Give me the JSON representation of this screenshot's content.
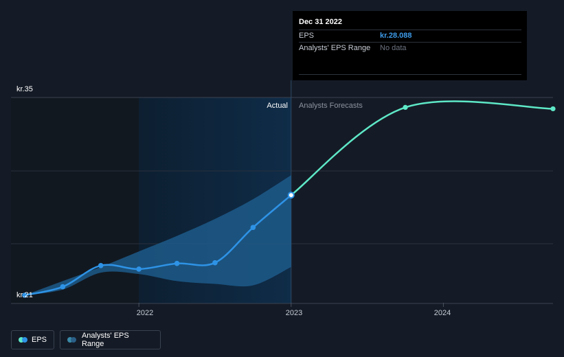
{
  "tooltip": {
    "date": "Dec 31 2022",
    "rows": [
      {
        "label": "EPS",
        "value": "kr.28.088"
      },
      {
        "label": "Analysts' EPS Range",
        "value": "No data"
      }
    ]
  },
  "labels": {
    "actual": "Actual",
    "forecast": "Analysts Forecasts"
  },
  "legend": {
    "eps": "EPS",
    "range": "Analysts' EPS Range"
  },
  "colors": {
    "background": "#151b26",
    "eps_line": "#2e93e6",
    "forecast_line": "#5ee8c8",
    "range_fill": "#1d5a8a",
    "highlight": "#0f2c48"
  },
  "chart_data": {
    "type": "line",
    "y_tick_labels": [
      "kr.35",
      "kr.21"
    ],
    "x_tick_labels": [
      "2022",
      "2023",
      "2024"
    ],
    "x_ticks": [
      2022.0,
      2023.0,
      2024.0
    ],
    "ylim": [
      21,
      35
    ],
    "xlim": [
      2021.16,
      2024.72
    ],
    "split_x": 2023.0,
    "highlight_start_x": 2022.0,
    "grid": true,
    "series": [
      {
        "name": "EPS",
        "x": [
          2021.25,
          2021.5,
          2021.75,
          2022.0,
          2022.25,
          2022.5,
          2022.75,
          2023.0
        ],
        "y": [
          21.0,
          21.6,
          23.1,
          22.85,
          23.25,
          23.3,
          25.8,
          28.088
        ]
      },
      {
        "name": "Analysts Forecasts",
        "x": [
          2023.0,
          2023.75,
          2024.72
        ],
        "y": [
          28.088,
          34.3,
          34.2
        ]
      }
    ],
    "range_band": {
      "name": "Analysts' EPS Range",
      "x": [
        2021.25,
        2021.5,
        2021.75,
        2022.0,
        2022.25,
        2022.5,
        2022.75,
        2023.0
      ],
      "upper": [
        21.0,
        22.0,
        23.0,
        24.1,
        25.2,
        26.4,
        27.8,
        29.5
      ],
      "lower": [
        21.0,
        21.4,
        22.6,
        22.5,
        22.0,
        21.8,
        21.7,
        23.0
      ]
    }
  }
}
